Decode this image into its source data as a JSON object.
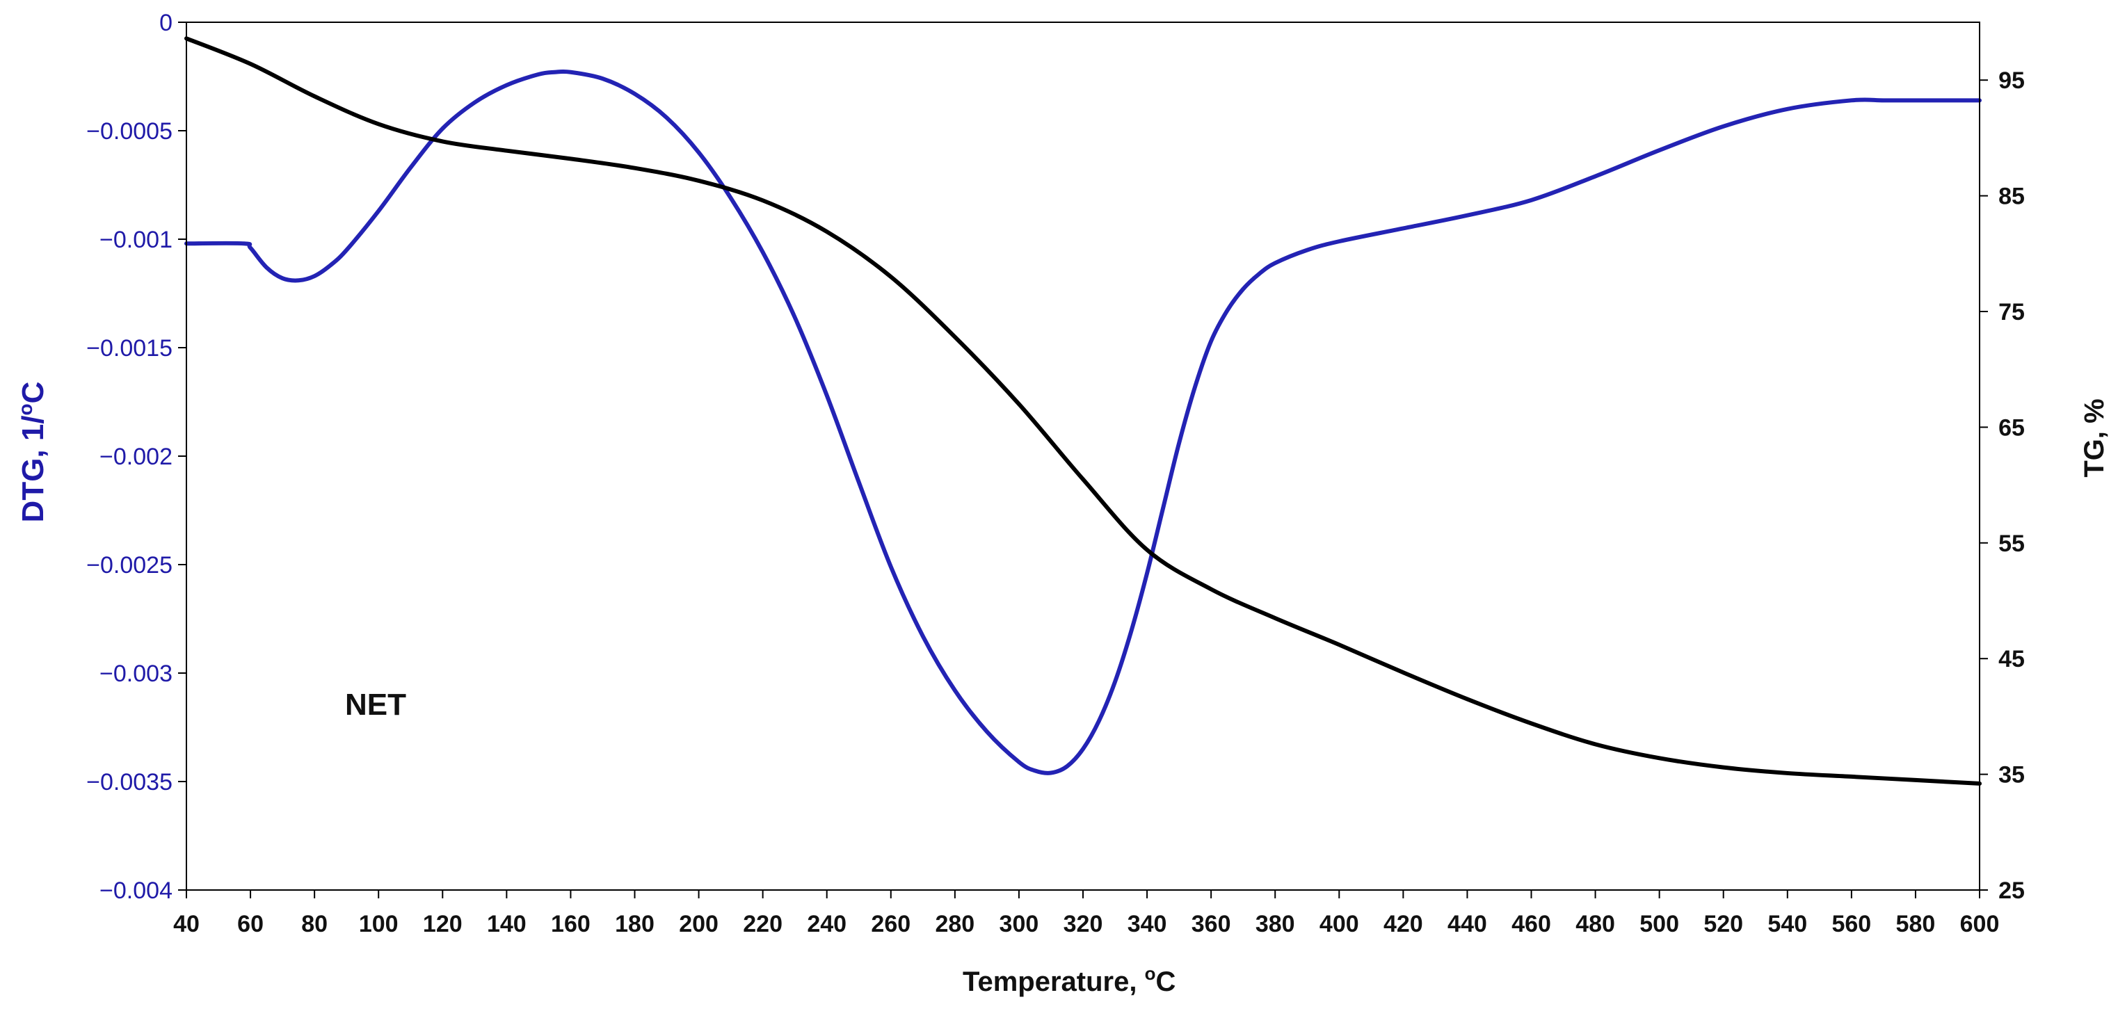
{
  "chart_data": {
    "type": "line",
    "title": "",
    "xlabel": "Temperature, ",
    "xlabel_sup": "o",
    "xlabel_tail": "C",
    "ylabel_left": "DTG, 1/",
    "ylabel_left_sup": "o",
    "ylabel_left_tail": "C",
    "ylabel_right": "TG, %",
    "annotation": "NET",
    "xlim": [
      40,
      600
    ],
    "ylim_left": [
      -0.004,
      0
    ],
    "ylim_right": [
      25,
      100
    ],
    "x_ticks": [
      40,
      60,
      80,
      100,
      120,
      140,
      160,
      180,
      200,
      220,
      240,
      260,
      280,
      300,
      320,
      340,
      360,
      380,
      400,
      420,
      440,
      460,
      480,
      500,
      520,
      540,
      560,
      580,
      600
    ],
    "y_left_ticks": [
      0,
      -0.0005,
      -0.001,
      -0.0015,
      -0.002,
      -0.0025,
      -0.003,
      -0.0035,
      -0.004
    ],
    "y_left_tick_labels": [
      "0",
      "−0.0005",
      "−0.001",
      "−0.0015",
      "−0.002",
      "−0.0025",
      "−0.003",
      "−0.0035",
      "−0.004"
    ],
    "y_right_ticks": [
      95,
      85,
      75,
      65,
      55,
      45,
      35,
      25
    ],
    "grid": false,
    "colors": {
      "DTG": "#2323b4",
      "TG": "#000000"
    },
    "series": [
      {
        "axis": "left",
        "x": [
          40,
          58,
          60,
          65,
          70,
          75,
          80,
          85,
          90,
          100,
          110,
          120,
          130,
          140,
          150,
          155,
          160,
          170,
          180,
          190,
          200,
          210,
          220,
          230,
          240,
          250,
          260,
          270,
          280,
          290,
          300,
          305,
          310,
          315,
          320,
          325,
          330,
          335,
          340,
          345,
          350,
          355,
          360,
          365,
          370,
          375,
          380,
          390,
          400,
          420,
          440,
          460,
          480,
          500,
          520,
          540,
          560,
          570,
          580,
          600
        ],
        "values": [
          -0.00102,
          -0.00102,
          -0.00104,
          -0.00113,
          -0.00118,
          -0.00119,
          -0.00117,
          -0.00112,
          -0.00105,
          -0.00087,
          -0.00067,
          -0.00049,
          -0.00037,
          -0.00029,
          -0.00024,
          -0.00023,
          -0.00023,
          -0.00026,
          -0.00033,
          -0.00044,
          -0.0006,
          -0.00081,
          -0.00106,
          -0.00136,
          -0.00172,
          -0.00212,
          -0.00251,
          -0.00283,
          -0.00308,
          -0.00327,
          -0.00341,
          -0.00345,
          -0.00346,
          -0.00343,
          -0.00335,
          -0.00322,
          -0.00304,
          -0.00281,
          -0.00254,
          -0.00224,
          -0.00194,
          -0.00168,
          -0.00147,
          -0.00133,
          -0.00123,
          -0.00116,
          -0.00111,
          -0.00105,
          -0.00101,
          -0.00095,
          -0.00089,
          -0.00082,
          -0.00071,
          -0.00059,
          -0.00048,
          -0.0004,
          -0.00036,
          -0.00036,
          -0.00036,
          -0.00036
        ]
      },
      {
        "axis": "right",
        "x": [
          40,
          60,
          80,
          100,
          120,
          140,
          160,
          180,
          200,
          220,
          240,
          260,
          280,
          300,
          320,
          340,
          360,
          380,
          400,
          420,
          440,
          460,
          480,
          500,
          520,
          540,
          560,
          580,
          600
        ],
        "values": [
          98.6,
          96.4,
          93.6,
          91.2,
          89.7,
          88.9,
          88.2,
          87.4,
          86.3,
          84.6,
          81.9,
          78.0,
          72.8,
          67.0,
          60.5,
          54.4,
          51.0,
          48.5,
          46.2,
          43.8,
          41.5,
          39.4,
          37.6,
          36.4,
          35.6,
          35.1,
          34.8,
          34.5,
          34.2
        ]
      }
    ]
  }
}
